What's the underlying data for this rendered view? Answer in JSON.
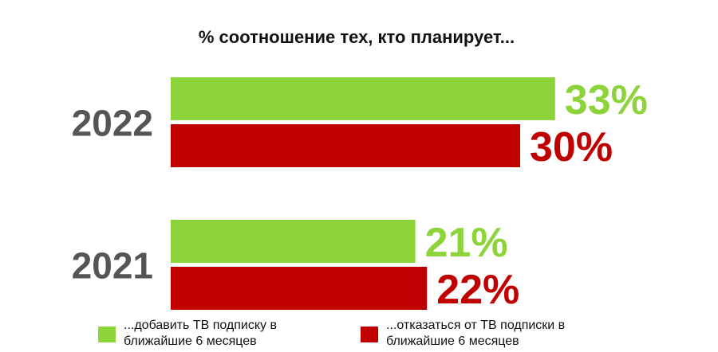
{
  "chart_data": {
    "type": "bar",
    "orientation": "horizontal",
    "title": "% соотношение тех, кто планирует...",
    "categories": [
      "2022",
      "2021"
    ],
    "series": [
      {
        "name": "...добавить ТВ подписку в\nближайшие 6 месяцев",
        "color": "#8dd33a",
        "values": [
          33,
          21
        ],
        "labels": [
          "33%",
          "21%"
        ]
      },
      {
        "name": "...отказаться от ТВ подписки в\nближайшие 6 месяцев",
        "color": "#c00000",
        "values": [
          30,
          22
        ],
        "labels": [
          "30%",
          "22%"
        ]
      }
    ],
    "xlim": [
      0,
      33
    ],
    "grid": false,
    "axes_visible": false,
    "legend_position": "bottom",
    "category_label_color": "#555555"
  }
}
